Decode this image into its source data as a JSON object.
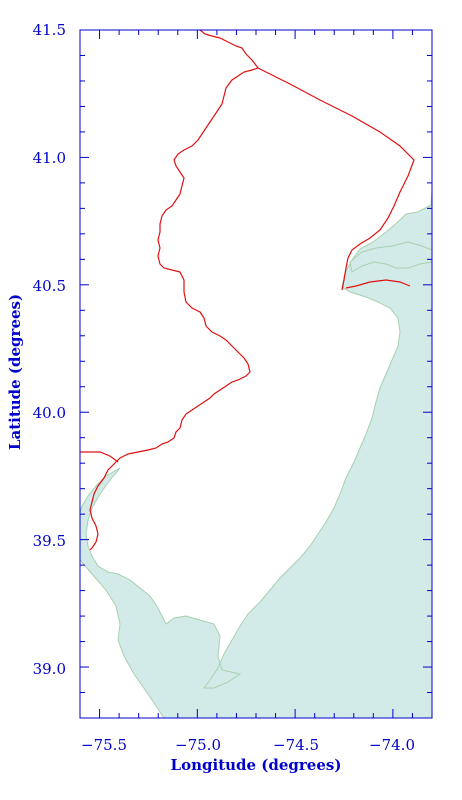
{
  "figure": {
    "colors": {
      "axis": "#0000cc",
      "border": "#e01010",
      "water_fill": "#d2ebe8",
      "water_edge": "#a8d0b0",
      "land": "#ffffff"
    },
    "xlabel": "Longitude (degrees)",
    "ylabel": "Latitude (degrees)",
    "x_ticks": [
      {
        "label": "−75.5",
        "value": -75.5
      },
      {
        "label": "−75.0",
        "value": -75.0
      },
      {
        "label": "−74.5",
        "value": -74.5
      },
      {
        "label": "−74.0",
        "value": -74.0
      }
    ],
    "y_ticks": [
      {
        "label": "41.5",
        "value": 41.5
      },
      {
        "label": "41.0",
        "value": 41.0
      },
      {
        "label": "40.5",
        "value": 40.5
      },
      {
        "label": "40.0",
        "value": 40.0
      },
      {
        "label": "39.5",
        "value": 39.5
      },
      {
        "label": "39.0",
        "value": 39.0
      }
    ],
    "xlim": [
      -75.6,
      -73.8
    ],
    "ylim": [
      38.8,
      41.5
    ],
    "minor_tick_step": 0.1,
    "grid": false
  }
}
